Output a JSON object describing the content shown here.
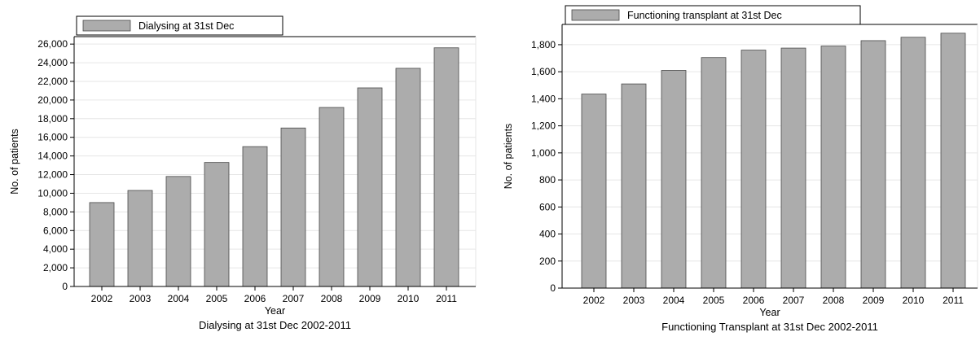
{
  "chart_data": [
    {
      "type": "bar",
      "title": "Dialysing at 31st Dec 2002-2011",
      "xlabel": "Year",
      "ylabel": "No. of patients",
      "categories": [
        "2002",
        "2003",
        "2004",
        "2005",
        "2006",
        "2007",
        "2008",
        "2009",
        "2010",
        "2011"
      ],
      "series": [
        {
          "name": "Dialysing at 31st Dec",
          "values": [
            9000,
            10300,
            11800,
            13300,
            15000,
            17000,
            19200,
            21300,
            23400,
            25600
          ]
        }
      ],
      "yticks": [
        "0",
        "2,000",
        "4,000",
        "6,000",
        "8,000",
        "10,000",
        "12,000",
        "14,000",
        "16,000",
        "18,000",
        "20,000",
        "22,000",
        "24,000",
        "26,000"
      ],
      "ylim": [
        0,
        26800
      ],
      "legend_position": "top-left",
      "grid": true,
      "bar_color": "#acacac"
    },
    {
      "type": "bar",
      "title": "Functioning Transplant at 31st Dec 2002-2011",
      "xlabel": "Year",
      "ylabel": "No. of patients",
      "categories": [
        "2002",
        "2003",
        "2004",
        "2005",
        "2006",
        "2007",
        "2008",
        "2009",
        "2010",
        "2011"
      ],
      "series": [
        {
          "name": "Functioning transplant at 31st Dec",
          "values": [
            1435,
            1510,
            1610,
            1705,
            1760,
            1775,
            1790,
            1830,
            1855,
            1885
          ]
        }
      ],
      "yticks": [
        "0",
        "200",
        "400",
        "600",
        "800",
        "1,000",
        "1,200",
        "1,400",
        "1,600",
        "1,800"
      ],
      "ylim": [
        0,
        1950
      ],
      "legend_position": "top-left",
      "grid": true,
      "bar_color": "#acacac"
    }
  ]
}
